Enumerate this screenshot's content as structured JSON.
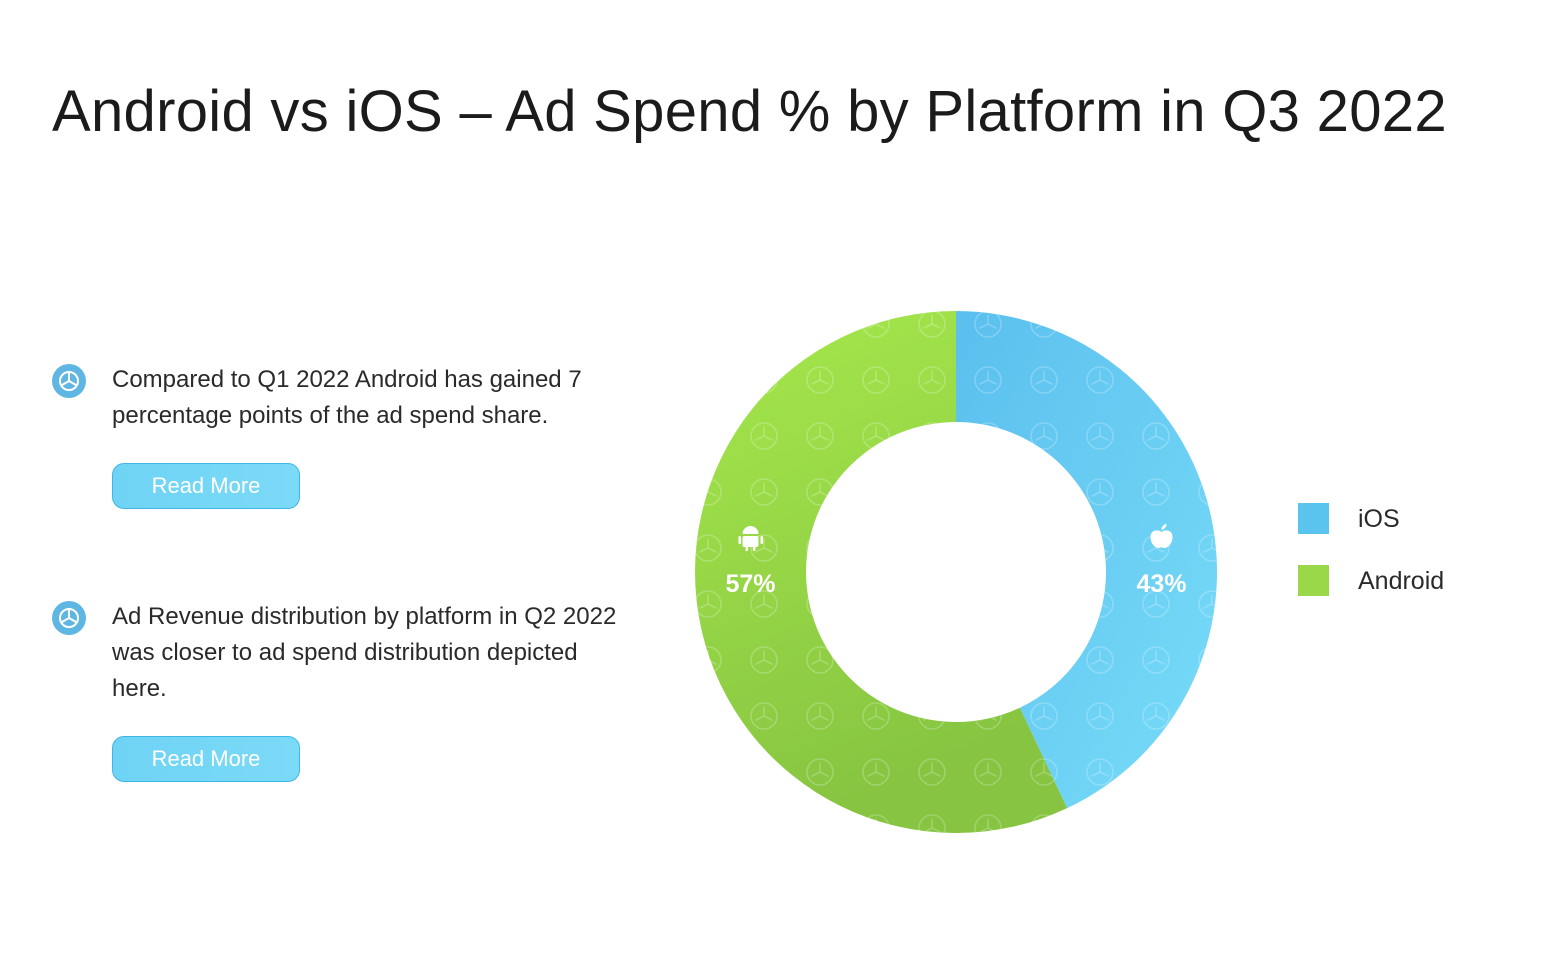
{
  "title": "Android vs iOS – Ad Spend % by Platform in Q3 2022",
  "notes": [
    {
      "icon": "logo-bullet-icon",
      "text": "Compared to Q1 2022 Android has gained 7 percentage points of the ad spend share.",
      "button_label": "Read More"
    },
    {
      "icon": "logo-bullet-icon",
      "text": "Ad Revenue distribution by platform in Q2 2022 was closer to ad spend distribution depicted here.",
      "button_label": "Read More"
    }
  ],
  "chart_data": {
    "type": "pie",
    "donut": true,
    "title": "Android vs iOS – Ad Spend % by Platform in Q3 2022",
    "categories": [
      "iOS",
      "Android"
    ],
    "values": [
      43,
      57
    ],
    "unit": "%",
    "labels": [
      "43%",
      "57%"
    ],
    "icons": [
      "apple-icon",
      "android-icon"
    ],
    "colors": [
      "#5bc4ee",
      "#9ad84a"
    ],
    "start": "top",
    "direction": "clockwise",
    "legend_position": "right"
  },
  "legend": {
    "items": [
      {
        "label": "iOS",
        "color": "#5bc4ee"
      },
      {
        "label": "Android",
        "color": "#9ad84a"
      }
    ]
  },
  "colors": {
    "accent": "#5bc4ee",
    "button_fill": "#74d6f6",
    "button_border": "#3fb6e4",
    "text": "#1b1b1b"
  }
}
